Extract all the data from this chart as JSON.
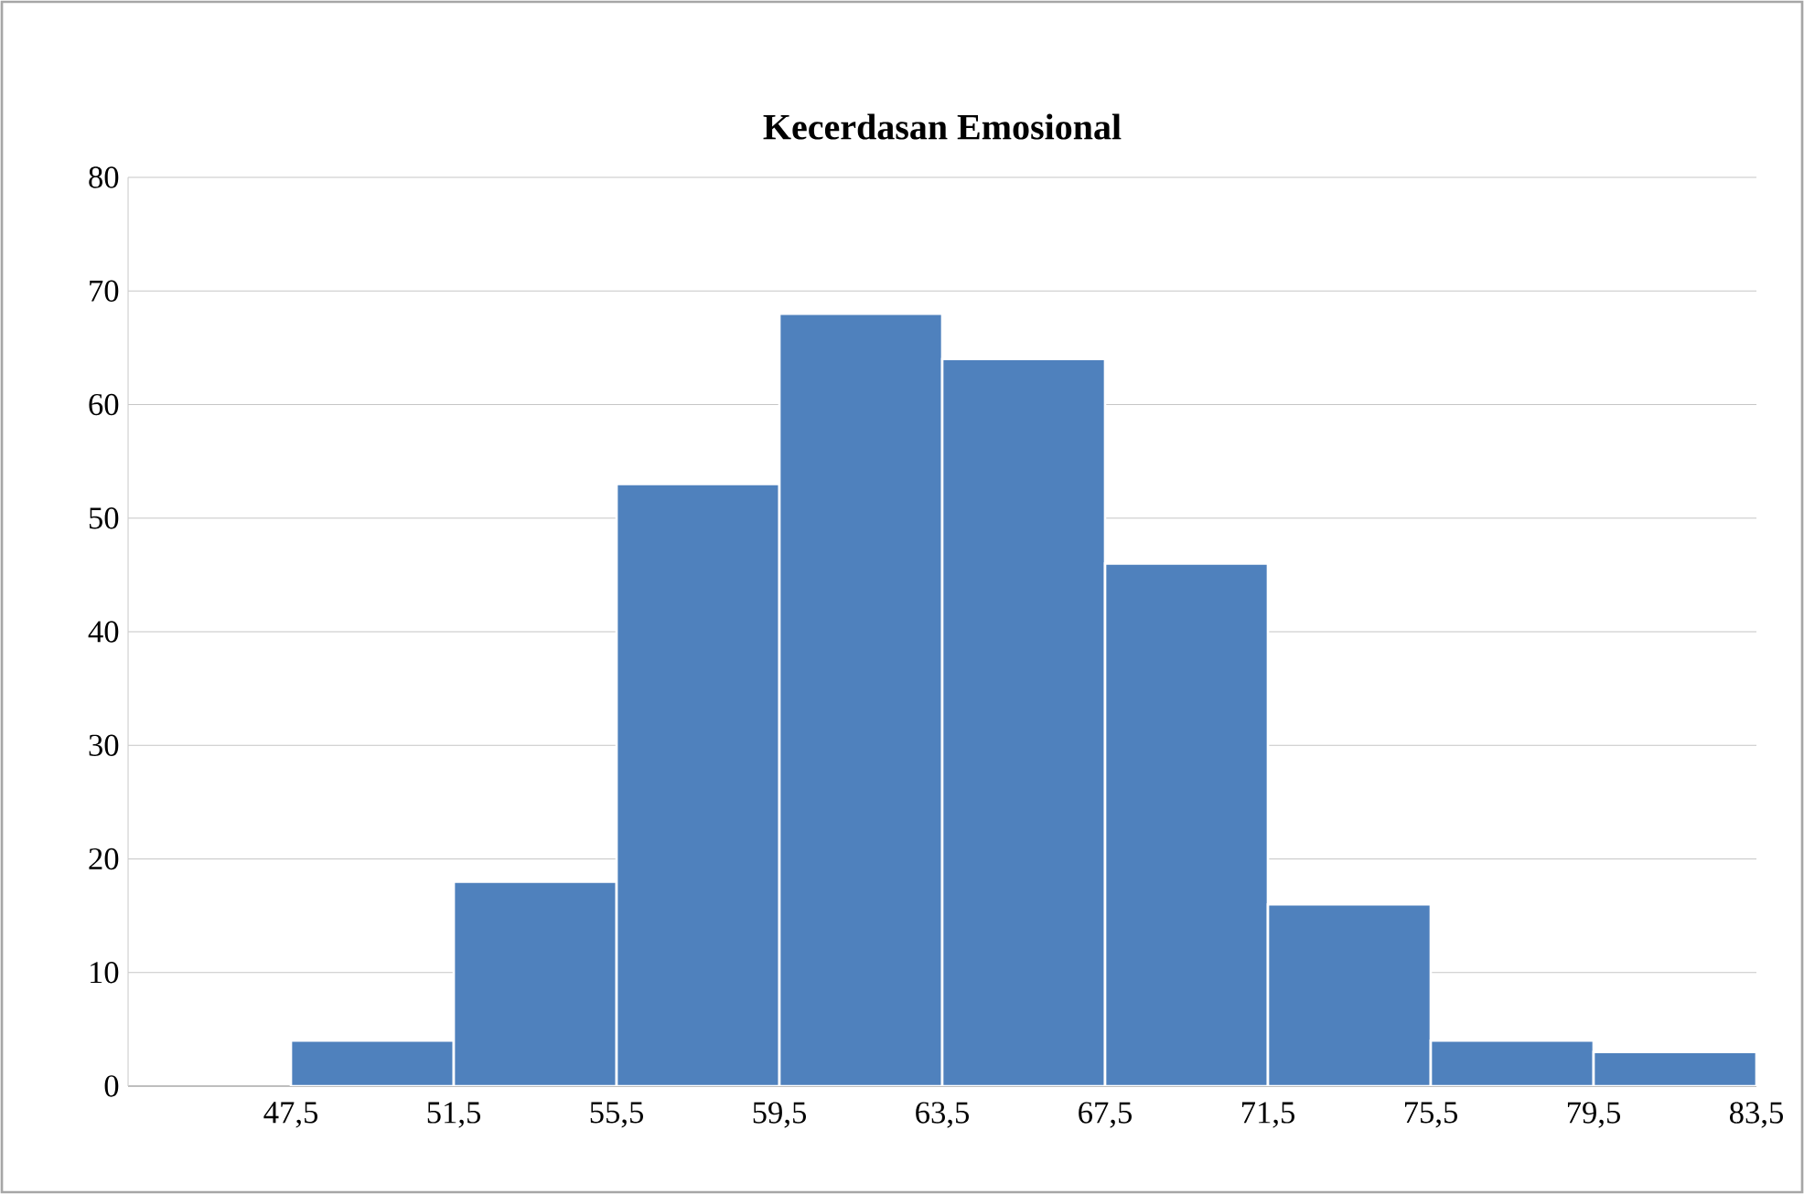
{
  "chart_data": {
    "type": "histogram",
    "title": "Kecerdasan Emosional",
    "bins": [
      47.5,
      51.5,
      55.5,
      59.5,
      63.5,
      67.5,
      71.5,
      75.5,
      79.5,
      83.5
    ],
    "values": [
      4,
      18,
      53,
      68,
      64,
      46,
      16,
      4,
      3
    ],
    "color": "#4f81bd",
    "xlim": [
      43.5,
      83.5
    ],
    "xticks": [
      {
        "value": 47.5,
        "label": "47,5"
      },
      {
        "value": 51.5,
        "label": "51,5"
      },
      {
        "value": 55.5,
        "label": "55,5"
      },
      {
        "value": 59.5,
        "label": "59,5"
      },
      {
        "value": 63.5,
        "label": "63,5"
      },
      {
        "value": 67.5,
        "label": "67,5"
      },
      {
        "value": 71.5,
        "label": "71,5"
      },
      {
        "value": 75.5,
        "label": "75,5"
      },
      {
        "value": 79.5,
        "label": "79,5"
      },
      {
        "value": 83.5,
        "label": "83,5"
      }
    ],
    "ylim": [
      0,
      80
    ],
    "yticks": [
      0,
      10,
      20,
      30,
      40,
      50,
      60,
      70,
      80
    ],
    "grid": "y"
  }
}
